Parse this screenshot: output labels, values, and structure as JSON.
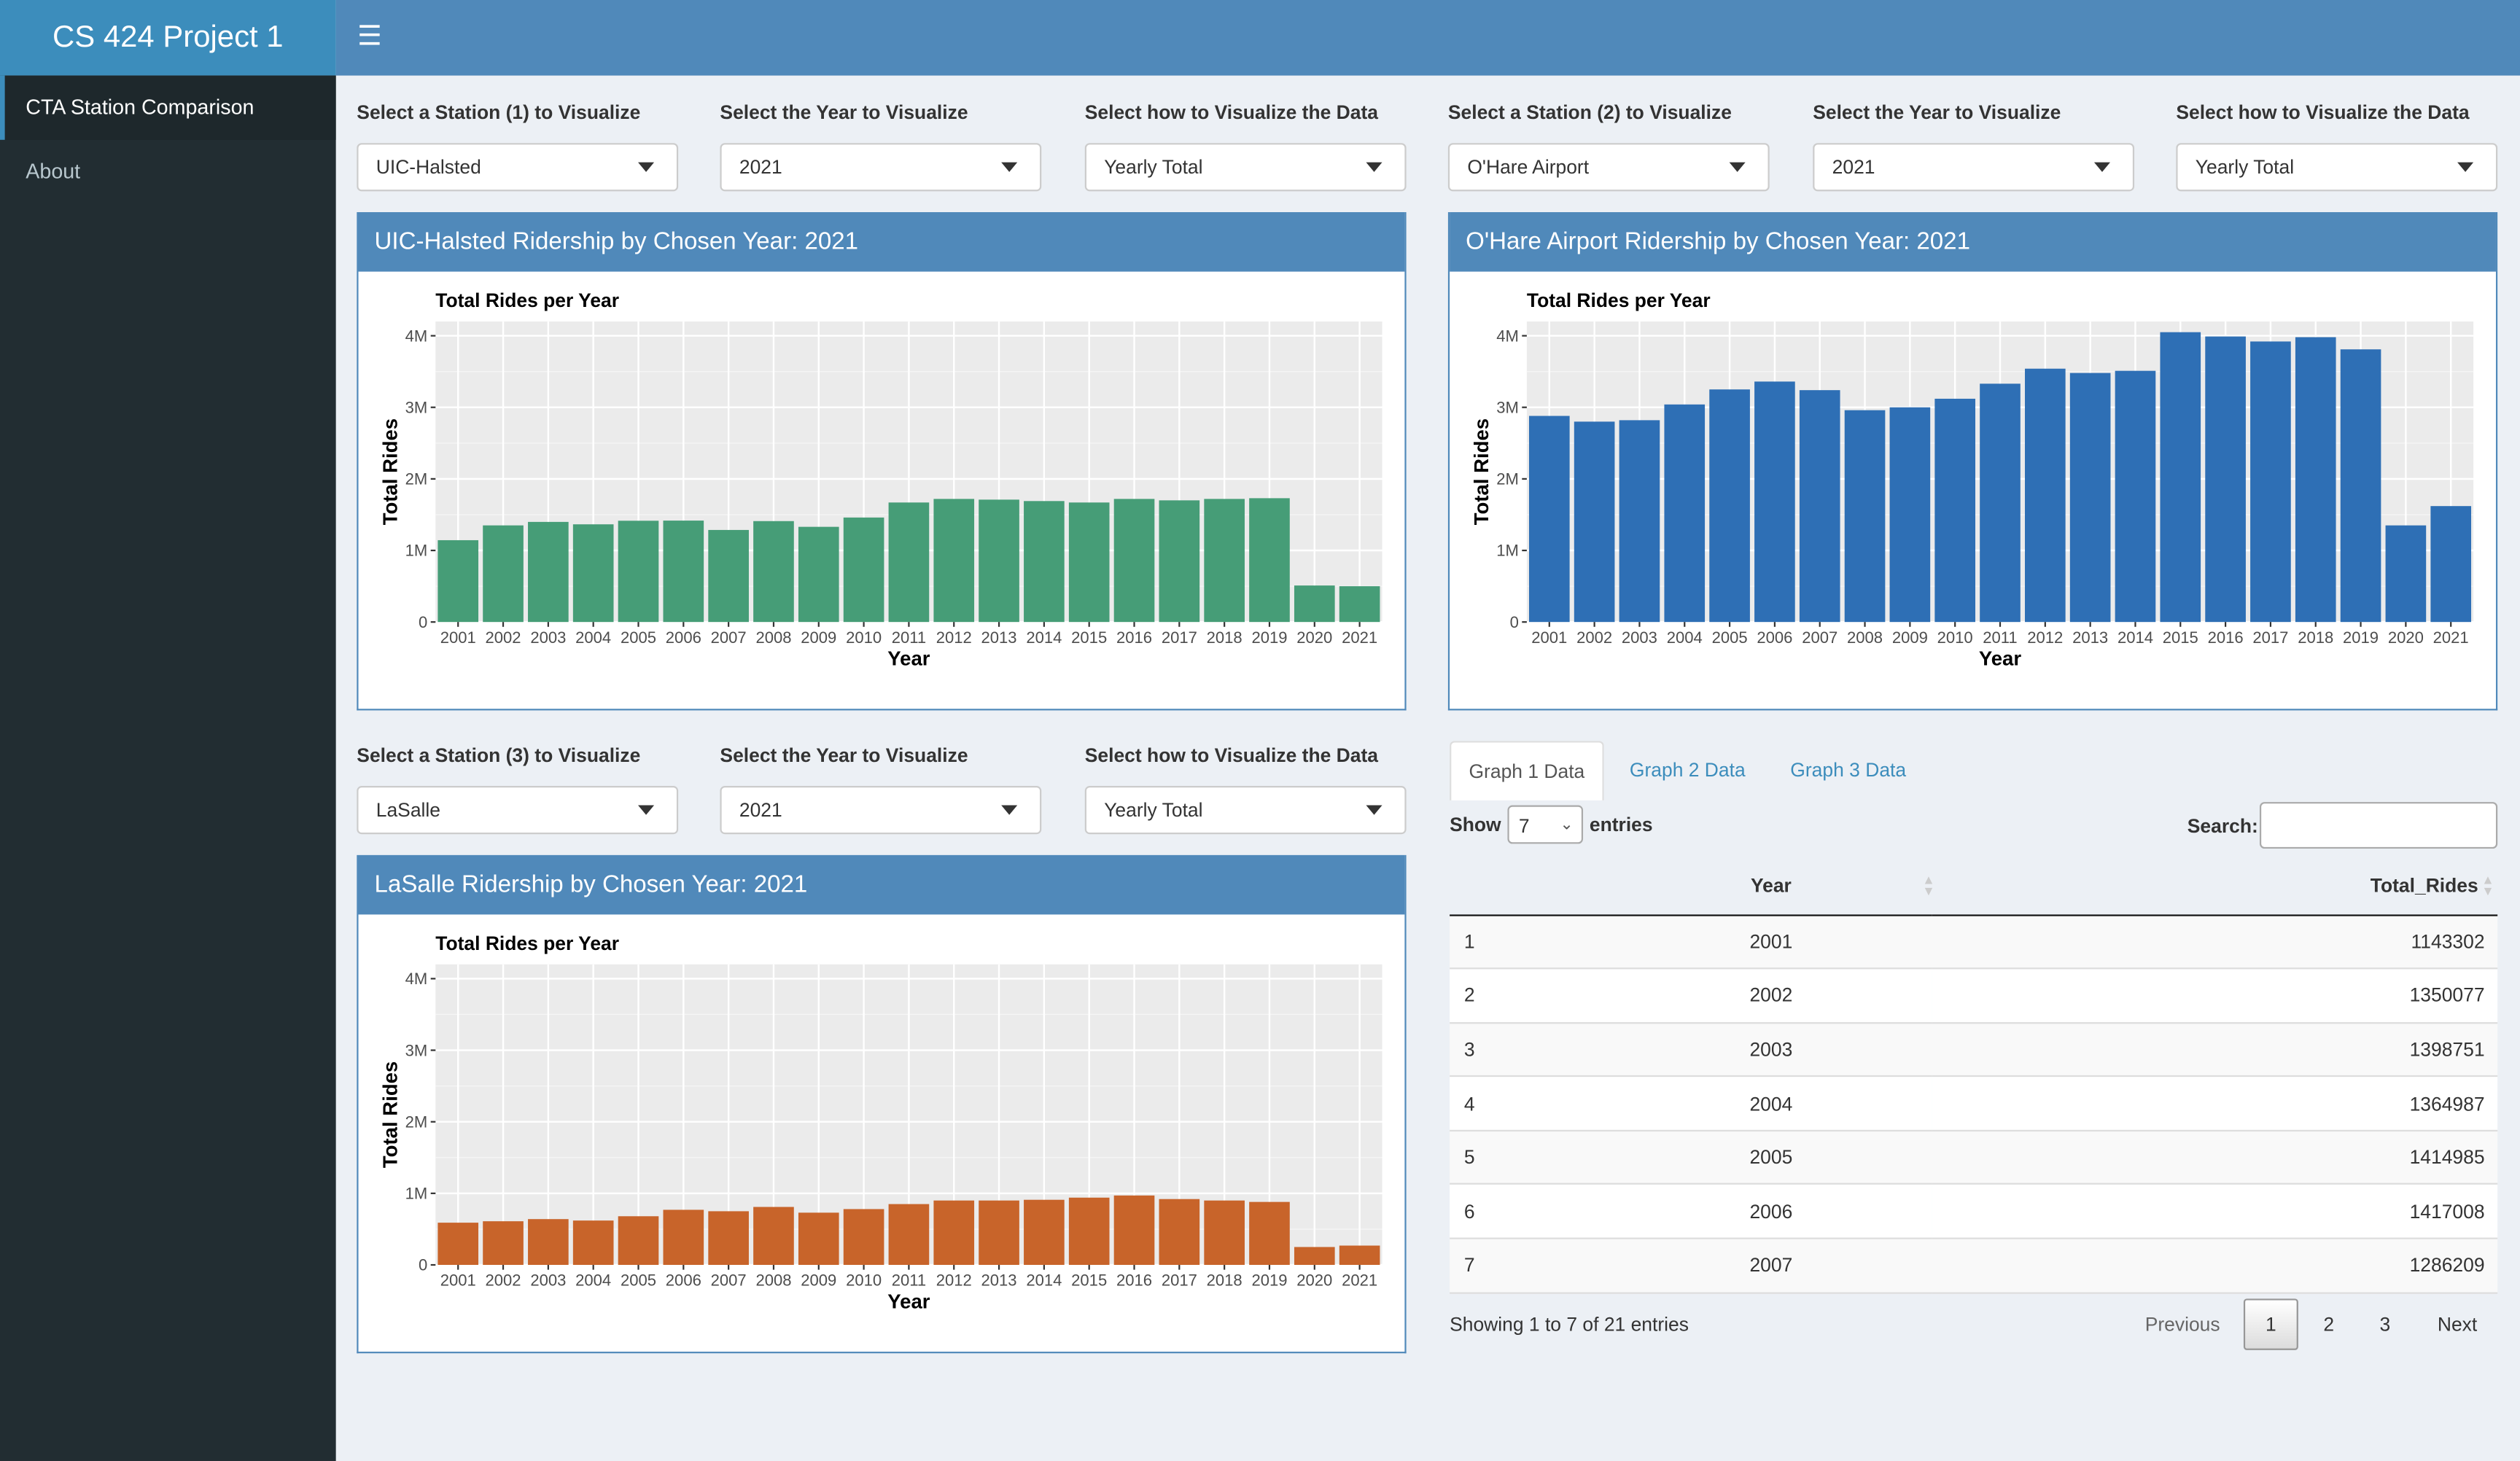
{
  "app": {
    "title": "CS 424 Project 1"
  },
  "sidebar": {
    "items": [
      {
        "label": "CTA Station Comparison"
      },
      {
        "label": "About"
      }
    ]
  },
  "controls": {
    "station1": {
      "label": "Select a Station (1) to Visualize",
      "value": "UIC-Halsted"
    },
    "year1": {
      "label": "Select the Year to Visualize",
      "value": "2021"
    },
    "how1": {
      "label": "Select how to Visualize the Data",
      "value": "Yearly Total"
    },
    "station2": {
      "label": "Select a Station (2) to Visualize",
      "value": "O'Hare Airport"
    },
    "year2": {
      "label": "Select the Year to Visualize",
      "value": "2021"
    },
    "how2": {
      "label": "Select how to Visualize the Data",
      "value": "Yearly Total"
    },
    "station3": {
      "label": "Select a Station (3) to Visualize",
      "value": "LaSalle"
    },
    "year3": {
      "label": "Select the Year to Visualize",
      "value": "2021"
    },
    "how3": {
      "label": "Select how to Visualize the Data",
      "value": "Yearly Total"
    }
  },
  "boxes": {
    "box1": {
      "title": "UIC-Halsted Ridership by Chosen Year: 2021"
    },
    "box2": {
      "title": "O'Hare Airport Ridership by Chosen Year: 2021"
    },
    "box3": {
      "title": "LaSalle Ridership by Chosen Year: 2021"
    }
  },
  "chart_data": [
    {
      "type": "bar",
      "title": "Total Rides per Year",
      "xlabel": "Year",
      "ylabel": "Total Rides",
      "ylim": [
        0,
        4200000
      ],
      "yticks": [
        0,
        1000000,
        2000000,
        3000000,
        4000000
      ],
      "ytick_labels": [
        "0",
        "1M",
        "2M",
        "3M",
        "4M"
      ],
      "grid": true,
      "color": "#469d77",
      "categories": [
        "2001",
        "2002",
        "2003",
        "2004",
        "2005",
        "2006",
        "2007",
        "2008",
        "2009",
        "2010",
        "2011",
        "2012",
        "2013",
        "2014",
        "2015",
        "2016",
        "2017",
        "2018",
        "2019",
        "2020",
        "2021"
      ],
      "values": [
        1143302,
        1350077,
        1398751,
        1364987,
        1414985,
        1417008,
        1286209,
        1410000,
        1330000,
        1460000,
        1670000,
        1720000,
        1710000,
        1690000,
        1670000,
        1720000,
        1700000,
        1720000,
        1730000,
        510000,
        500000
      ]
    },
    {
      "type": "bar",
      "title": "Total Rides per Year",
      "xlabel": "Year",
      "ylabel": "Total Rides",
      "ylim": [
        0,
        4200000
      ],
      "yticks": [
        0,
        1000000,
        2000000,
        3000000,
        4000000
      ],
      "ytick_labels": [
        "0",
        "1M",
        "2M",
        "3M",
        "4M"
      ],
      "grid": true,
      "color": "#2e6fb5",
      "categories": [
        "2001",
        "2002",
        "2003",
        "2004",
        "2005",
        "2006",
        "2007",
        "2008",
        "2009",
        "2010",
        "2011",
        "2012",
        "2013",
        "2014",
        "2015",
        "2016",
        "2017",
        "2018",
        "2019",
        "2020",
        "2021"
      ],
      "values": [
        2880000,
        2800000,
        2820000,
        3040000,
        3250000,
        3360000,
        3240000,
        2960000,
        3000000,
        3120000,
        3330000,
        3540000,
        3480000,
        3510000,
        4050000,
        3990000,
        3920000,
        3980000,
        3810000,
        1350000,
        1620000
      ]
    },
    {
      "type": "bar",
      "title": "Total Rides per Year",
      "xlabel": "Year",
      "ylabel": "Total Rides",
      "ylim": [
        0,
        4200000
      ],
      "yticks": [
        0,
        1000000,
        2000000,
        3000000,
        4000000
      ],
      "ytick_labels": [
        "0",
        "1M",
        "2M",
        "3M",
        "4M"
      ],
      "grid": true,
      "color": "#c8642a",
      "categories": [
        "2001",
        "2002",
        "2003",
        "2004",
        "2005",
        "2006",
        "2007",
        "2008",
        "2009",
        "2010",
        "2011",
        "2012",
        "2013",
        "2014",
        "2015",
        "2016",
        "2017",
        "2018",
        "2019",
        "2020",
        "2021"
      ],
      "values": [
        590000,
        610000,
        640000,
        620000,
        680000,
        770000,
        750000,
        810000,
        730000,
        780000,
        850000,
        900000,
        900000,
        910000,
        940000,
        970000,
        920000,
        900000,
        880000,
        250000,
        270000
      ]
    }
  ],
  "tabs": [
    {
      "label": "Graph 1 Data"
    },
    {
      "label": "Graph 2 Data"
    },
    {
      "label": "Graph 3 Data"
    }
  ],
  "table": {
    "show_label": "Show",
    "entries_label": "entries",
    "page_length": "7",
    "search_label": "Search:",
    "columns": [
      "",
      "Year",
      "Total_Rides"
    ],
    "rows": [
      [
        "1",
        "2001",
        "1143302"
      ],
      [
        "2",
        "2002",
        "1350077"
      ],
      [
        "3",
        "2003",
        "1398751"
      ],
      [
        "4",
        "2004",
        "1364987"
      ],
      [
        "5",
        "2005",
        "1414985"
      ],
      [
        "6",
        "2006",
        "1417008"
      ],
      [
        "7",
        "2007",
        "1286209"
      ]
    ],
    "info": "Showing 1 to 7 of 21 entries",
    "pagination": {
      "previous": "Previous",
      "pages": [
        "1",
        "2",
        "3"
      ],
      "next": "Next",
      "current": "1"
    }
  },
  "colors": {
    "header": "#5089ba",
    "sidebar": "#222d32",
    "body": "#ecf0f5",
    "accent": "#3c8dbc"
  }
}
